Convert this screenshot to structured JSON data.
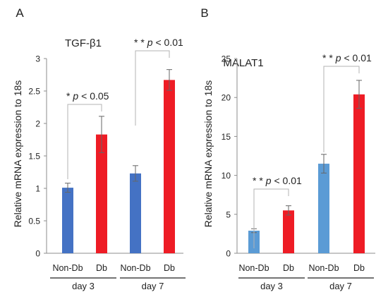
{
  "chart_data": [
    {
      "panel_label": "A",
      "type": "bar",
      "title": "TGF-β1",
      "ylabel": "Relative mRNA expression to 18s",
      "ylim": [
        0,
        3
      ],
      "yticks": [
        "0",
        "0.5",
        "1",
        "1.5",
        "2",
        "2.5",
        "3"
      ],
      "grid": false,
      "categories": [
        "Non-Db",
        "Db",
        "Non-Db",
        "Db"
      ],
      "groups": [
        "day 3",
        "day 7"
      ],
      "values": [
        1.01,
        1.83,
        1.23,
        2.67
      ],
      "errors": [
        0.07,
        0.28,
        0.12,
        0.16
      ],
      "bar_colors": [
        "#4472c4",
        "#ee1c25",
        "#4472c4",
        "#ee1c25"
      ],
      "annotations": [
        {
          "stars": "*",
          "p": "p",
          "op": "< 0.05",
          "between": [
            0,
            1
          ]
        },
        {
          "stars": "* *",
          "p": "p",
          "op": "< 0.01",
          "between": [
            2,
            3
          ]
        }
      ]
    },
    {
      "panel_label": "B",
      "type": "bar",
      "title": "MALAT1",
      "ylabel": "Relative mRNA expression to 18s",
      "ylim": [
        0,
        25
      ],
      "yticks": [
        "0",
        "5",
        "10",
        "15",
        "20",
        "25"
      ],
      "grid": false,
      "categories": [
        "Non-Db",
        "Db",
        "Non-Db",
        "Db"
      ],
      "groups": [
        "day 3",
        "day 7"
      ],
      "values": [
        2.9,
        5.5,
        11.5,
        20.4
      ],
      "errors": [
        0.25,
        0.6,
        1.2,
        1.8
      ],
      "bar_colors": [
        "#5b9bd5",
        "#ee1c25",
        "#5b9bd5",
        "#ee1c25"
      ],
      "annotations": [
        {
          "stars": "* *",
          "p": "p",
          "op": "< 0.01",
          "between": [
            0,
            1
          ]
        },
        {
          "stars": "* *",
          "p": "p",
          "op": "< 0.01",
          "between": [
            2,
            3
          ]
        }
      ]
    }
  ]
}
